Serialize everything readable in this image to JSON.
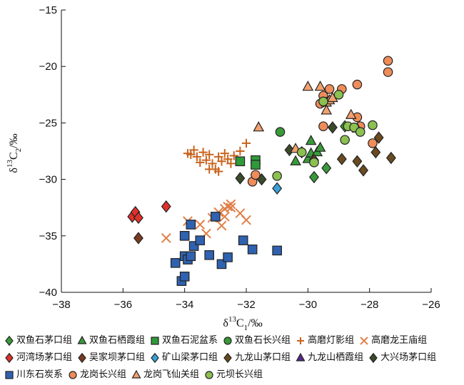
{
  "chart_data": {
    "type": "scatter",
    "xlabel": "δ13C1/‰",
    "ylabel": "δ13C2/‰",
    "xlim": [
      -38,
      -26
    ],
    "ylim": [
      -40,
      -15
    ],
    "xticks": [
      "−38",
      "−36",
      "−34",
      "−32",
      "−30",
      "−28",
      "−26"
    ],
    "yticks": [
      "−40",
      "−35",
      "−30",
      "−25",
      "−20",
      "−15"
    ],
    "grid": false,
    "legend_position": "bottom",
    "series": [
      {
        "name": "双鱼石茅口组",
        "marker": "diamond",
        "color": "#3a9a3a",
        "points": [
          [
            -29.8,
            -29.8
          ],
          [
            -29.4,
            -29.0
          ],
          [
            -28.8,
            -25.3
          ]
        ]
      },
      {
        "name": "双鱼石栖霞组",
        "marker": "triangle",
        "color": "#3a9a3a",
        "points": [
          [
            -30.4,
            -28.4
          ],
          [
            -30.0,
            -28.2
          ],
          [
            -29.9,
            -27.7
          ],
          [
            -29.7,
            -27.6
          ],
          [
            -29.9,
            -26.6
          ],
          [
            -29.6,
            -27.2
          ]
        ]
      },
      {
        "name": "双鱼石泥盆系",
        "marker": "square",
        "color": "#2f9a3a",
        "points": [
          [
            -32.2,
            -28.4
          ],
          [
            -31.7,
            -28.3
          ],
          [
            -31.7,
            -28.7
          ]
        ]
      },
      {
        "name": "双鱼石长兴组",
        "marker": "circle",
        "color": "#3a9a3a",
        "points": [
          [
            -30.9,
            -25.8
          ]
        ]
      },
      {
        "name": "高磨灯影组",
        "marker": "plus",
        "color": "#c8641e",
        "points": [
          [
            -33.9,
            -27.7
          ],
          [
            -33.7,
            -27.4
          ],
          [
            -33.6,
            -28.0
          ],
          [
            -33.4,
            -27.6
          ],
          [
            -33.3,
            -28.3
          ],
          [
            -33.2,
            -27.8
          ],
          [
            -33.1,
            -28.6
          ],
          [
            -33.0,
            -29.1
          ],
          [
            -32.9,
            -28.0
          ],
          [
            -32.8,
            -28.4
          ],
          [
            -32.7,
            -27.7
          ],
          [
            -32.6,
            -28.2
          ],
          [
            -32.5,
            -28.6
          ],
          [
            -32.4,
            -27.9
          ],
          [
            -32.2,
            -27.5
          ],
          [
            -32.0,
            -26.8
          ],
          [
            -33.8,
            -27.8
          ],
          [
            -33.5,
            -28.5
          ],
          [
            -32.9,
            -29.3
          ],
          [
            -33.2,
            -29.1
          ]
        ]
      },
      {
        "name": "高磨龙王庙组",
        "marker": "x",
        "color": "#e0804a",
        "points": [
          [
            -34.6,
            -35.2
          ],
          [
            -33.9,
            -33.7
          ],
          [
            -33.5,
            -34.0
          ],
          [
            -33.3,
            -34.8
          ],
          [
            -33.1,
            -33.4
          ],
          [
            -32.9,
            -32.9
          ],
          [
            -32.8,
            -34.1
          ],
          [
            -32.7,
            -32.6
          ],
          [
            -32.6,
            -32.4
          ],
          [
            -32.5,
            -32.2
          ],
          [
            -32.7,
            -33.3
          ],
          [
            -32.2,
            -33.0
          ],
          [
            -32.0,
            -33.6
          ],
          [
            -32.5,
            -32.5
          ]
        ]
      },
      {
        "name": "河湾场茅口组",
        "marker": "diamond",
        "color": "#e0302a",
        "points": [
          [
            -35.7,
            -33.3
          ],
          [
            -35.6,
            -32.9
          ],
          [
            -35.5,
            -33.4
          ],
          [
            -34.6,
            -32.4
          ]
        ]
      },
      {
        "name": "吴家坝茅口组",
        "marker": "diamond",
        "color": "#7a3a22",
        "points": [
          [
            -35.5,
            -35.2
          ]
        ]
      },
      {
        "name": "矿山梁茅口组",
        "marker": "diamond",
        "color": "#3aa0d8",
        "points": [
          [
            -31.0,
            -30.8
          ]
        ]
      },
      {
        "name": "九龙山茅口组",
        "marker": "diamond",
        "color": "#6a4a20",
        "points": [
          [
            -29.8,
            -28.3
          ],
          [
            -28.9,
            -28.2
          ],
          [
            -28.4,
            -28.4
          ],
          [
            -28.2,
            -29.2
          ],
          [
            -27.8,
            -27.6
          ],
          [
            -27.7,
            -26.3
          ],
          [
            -27.3,
            -28.1
          ]
        ]
      },
      {
        "name": "九龙山栖霞组",
        "marker": "triangle",
        "color": "#5a2a8a",
        "points": []
      },
      {
        "name": "大兴场茅口组",
        "marker": "diamond",
        "color": "#3a4a2a",
        "points": [
          [
            -32.2,
            -29.9
          ],
          [
            -31.5,
            -30.0
          ],
          [
            -30.6,
            -27.4
          ],
          [
            -30.2,
            -27.6
          ],
          [
            -29.2,
            -25.4
          ]
        ]
      },
      {
        "name": "川东石炭系",
        "marker": "square",
        "color": "#2f62b0",
        "points": [
          [
            -34.3,
            -37.4
          ],
          [
            -34.1,
            -39.0
          ],
          [
            -34.0,
            -38.6
          ],
          [
            -34.0,
            -36.8
          ],
          [
            -33.9,
            -37.1
          ],
          [
            -33.8,
            -36.8
          ],
          [
            -33.7,
            -35.9
          ],
          [
            -34.0,
            -35.0
          ],
          [
            -33.8,
            -34.0
          ],
          [
            -33.5,
            -35.4
          ],
          [
            -33.2,
            -36.7
          ],
          [
            -33.0,
            -33.3
          ],
          [
            -32.8,
            -37.5
          ],
          [
            -32.6,
            -36.9
          ],
          [
            -32.1,
            -35.4
          ],
          [
            -31.8,
            -36.2
          ],
          [
            -31.0,
            -36.3
          ]
        ]
      },
      {
        "name": "龙岗长兴组",
        "marker": "circle",
        "color": "#ee8c5a",
        "points": [
          [
            -31.8,
            -30.2
          ],
          [
            -31.7,
            -29.6
          ],
          [
            -29.5,
            -25.3
          ],
          [
            -29.5,
            -22.6
          ],
          [
            -29.3,
            -22.0
          ],
          [
            -28.9,
            -22.0
          ],
          [
            -28.4,
            -21.6
          ],
          [
            -28.4,
            -24.5
          ],
          [
            -28.3,
            -25.3
          ],
          [
            -27.9,
            -26.8
          ],
          [
            -27.4,
            -19.5
          ],
          [
            -27.4,
            -20.5
          ],
          [
            -29.6,
            -23.3
          ]
        ]
      },
      {
        "name": "龙岗飞仙关组",
        "marker": "triangle",
        "color": "#f2a070",
        "points": [
          [
            -31.6,
            -25.4
          ],
          [
            -30.4,
            -27.3
          ],
          [
            -30.0,
            -21.8
          ],
          [
            -29.6,
            -21.8
          ],
          [
            -29.4,
            -23.2
          ],
          [
            -29.4,
            -23.9
          ],
          [
            -29.3,
            -23.0
          ],
          [
            -29.2,
            -22.8
          ],
          [
            -28.6,
            -24.3
          ],
          [
            -28.4,
            -25.5
          ]
        ]
      },
      {
        "name": "元坝长兴组",
        "marker": "circle",
        "color": "#8cc050",
        "points": [
          [
            -31.0,
            -29.7
          ],
          [
            -30.2,
            -27.6
          ],
          [
            -29.8,
            -28.5
          ],
          [
            -29.5,
            -23.1
          ],
          [
            -29.0,
            -22.5
          ],
          [
            -28.8,
            -26.5
          ],
          [
            -28.7,
            -25.3
          ],
          [
            -28.5,
            -25.4
          ],
          [
            -28.3,
            -25.8
          ],
          [
            -27.9,
            -25.2
          ]
        ]
      }
    ]
  }
}
